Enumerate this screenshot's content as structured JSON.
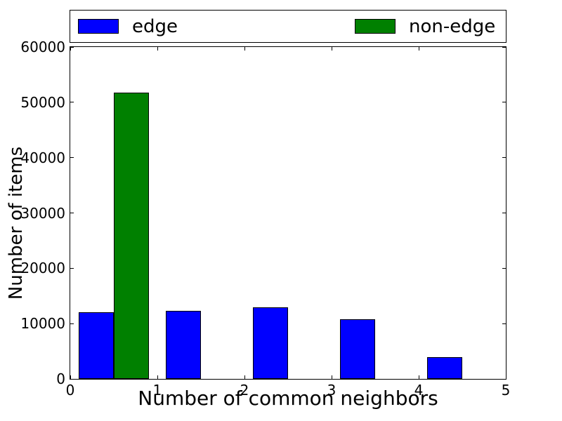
{
  "figure": {
    "background": "#ffffff",
    "xlabel": "Number of common neighbors",
    "ylabel": "Number of items"
  },
  "legend": {
    "position": "top-expanded",
    "items": [
      {
        "label": "edge",
        "color": "#0000ff"
      },
      {
        "label": "non-edge",
        "color": "#008000"
      }
    ]
  },
  "chart_data": {
    "type": "bar",
    "title": "",
    "xlabel": "Number of common neighbors",
    "ylabel": "Number of items",
    "xlim": [
      0,
      5
    ],
    "ylim": [
      0,
      60000
    ],
    "xticks": [
      0,
      1,
      2,
      3,
      4,
      5
    ],
    "xtick_labels": [
      "0",
      "1",
      "2",
      "3",
      "4",
      "5"
    ],
    "yticks": [
      0,
      10000,
      20000,
      30000,
      40000,
      50000,
      60000
    ],
    "ytick_labels": [
      "0",
      "10000",
      "20000",
      "30000",
      "40000",
      "50000",
      "60000"
    ],
    "grid": false,
    "legend_position": "top-expanded",
    "categories": [
      0,
      1,
      2,
      3,
      4
    ],
    "bin_width": 0.4,
    "series": [
      {
        "name": "edge",
        "color": "#0000ff",
        "offset": 0.1,
        "values": [
          12000,
          12300,
          12900,
          10850,
          3900
        ]
      },
      {
        "name": "non-edge",
        "color": "#008000",
        "offset": 0.5,
        "values": [
          51800,
          0,
          0,
          0,
          0
        ]
      }
    ]
  }
}
